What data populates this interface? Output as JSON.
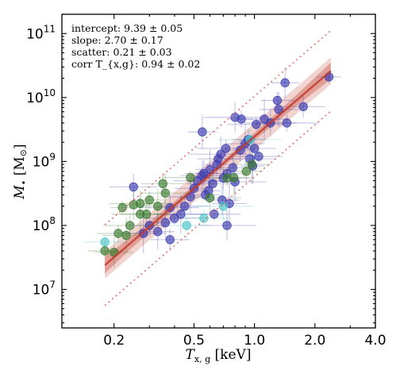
{
  "chart_data": {
    "type": "scatter",
    "x_scale": "log",
    "y_scale": "log",
    "xlabel": "T_{x,g} [keV]",
    "ylabel": "M• [M⊙]",
    "xlim": [
      0.11,
      4.0
    ],
    "ylim": [
      2500000,
      200000000000
    ],
    "x_ticks": [
      0.2,
      0.5,
      1.0,
      2.0,
      4.0
    ],
    "x_tick_labels": [
      "0.2",
      "0.5",
      "1.0",
      "2.0",
      "4.0"
    ],
    "y_ticks": [
      10000000,
      100000000,
      1000000000,
      10000000000,
      100000000000
    ],
    "y_tick_labels": [
      {
        "base": "10",
        "exp": "7"
      },
      {
        "base": "10",
        "exp": "8"
      },
      {
        "base": "10",
        "exp": "9"
      },
      {
        "base": "10",
        "exp": "10"
      },
      {
        "base": "10",
        "exp": "11"
      }
    ],
    "annotations": [
      {
        "label": "intercept:",
        "value": "9.39 ± 0.05"
      },
      {
        "label": "slope:",
        "value": "2.70 ± 0.17"
      },
      {
        "label": "scatter:",
        "value": "0.21 ± 0.03"
      },
      {
        "label": "corr T_{x,g}:",
        "value": "0.94 ± 0.02"
      }
    ],
    "fit": {
      "intercept": 9.39,
      "slope": 2.7,
      "pivot_keV": 1.0,
      "scatter_dex": 0.21,
      "x_range": [
        0.18,
        2.4
      ],
      "color": "#c0392b"
    },
    "series": [
      {
        "color": "#3b3bb0",
        "points": [
          [
            2.35,
            21000000000.0
          ],
          [
            1.42,
            17000000000.0
          ],
          [
            1.3,
            9000000000.0
          ],
          [
            1.32,
            6500000000.0
          ],
          [
            1.75,
            7200000000.0
          ],
          [
            1.12,
            4600000000.0
          ],
          [
            1.2,
            4000000000.0
          ],
          [
            1.02,
            3800000000.0
          ],
          [
            0.8,
            4900000000.0
          ],
          [
            0.86,
            4600000000.0
          ],
          [
            0.55,
            2900000000.0
          ],
          [
            0.93,
            2200000000.0
          ],
          [
            0.9,
            1900000000.0
          ],
          [
            1.0,
            1600000000.0
          ],
          [
            1.05,
            1200000000.0
          ],
          [
            0.95,
            1100000000.0
          ],
          [
            0.72,
            1600000000.0
          ],
          [
            0.68,
            1300000000.0
          ],
          [
            0.65,
            900000000.0
          ],
          [
            0.6,
            750000000.0
          ],
          [
            0.78,
            800000000.0
          ],
          [
            0.73,
            650000000.0
          ],
          [
            0.55,
            600000000.0
          ],
          [
            0.52,
            500000000.0
          ],
          [
            0.62,
            450000000.0
          ],
          [
            0.7,
            550000000.0
          ],
          [
            0.8,
            480000000.0
          ],
          [
            0.59,
            350000000.0
          ],
          [
            0.57,
            300000000.0
          ],
          [
            0.69,
            250000000.0
          ],
          [
            0.5,
            380000000.0
          ],
          [
            0.48,
            280000000.0
          ],
          [
            0.45,
            200000000.0
          ],
          [
            0.43,
            150000000.0
          ],
          [
            0.38,
            190000000.0
          ],
          [
            0.4,
            130000000.0
          ],
          [
            0.36,
            110000000.0
          ],
          [
            0.3,
            100000000.0
          ],
          [
            0.33,
            80000000.0
          ],
          [
            0.38,
            60000000.0
          ],
          [
            0.28,
            75000000.0
          ],
          [
            0.25,
            400000000.0
          ],
          [
            0.63,
            150000000.0
          ],
          [
            0.73,
            100000000.0
          ],
          [
            1.45,
            4000000000.0
          ],
          [
            0.98,
            850000000.0
          ],
          [
            0.85,
            1500000000.0
          ],
          [
            0.75,
            220000000.0
          ],
          [
            0.56,
            650000000.0
          ],
          [
            0.66,
            1100000000.0
          ]
        ]
      },
      {
        "color": "#3a7a2e",
        "points": [
          [
            0.18,
            40000000.0
          ],
          [
            0.2,
            38000000.0
          ],
          [
            0.21,
            75000000.0
          ],
          [
            0.23,
            70000000.0
          ],
          [
            0.24,
            100000000.0
          ],
          [
            0.27,
            150000000.0
          ],
          [
            0.27,
            220000000.0
          ],
          [
            0.22,
            190000000.0
          ],
          [
            0.25,
            210000000.0
          ],
          [
            0.3,
            250000000.0
          ],
          [
            0.33,
            200000000.0
          ],
          [
            0.35,
            450000000.0
          ],
          [
            0.36,
            320000000.0
          ],
          [
            0.29,
            150000000.0
          ],
          [
            0.48,
            560000000.0
          ],
          [
            0.6,
            270000000.0
          ],
          [
            0.73,
            550000000.0
          ],
          [
            0.79,
            560000000.0
          ],
          [
            0.91,
            700000000.0
          ],
          [
            0.97,
            900000000.0
          ]
        ]
      },
      {
        "color": "#4cc6c8",
        "points": [
          [
            0.18,
            55000000.0
          ],
          [
            0.46,
            100000000.0
          ],
          [
            0.56,
            130000000.0
          ],
          [
            0.7,
            200000000.0
          ],
          [
            0.95,
            2200000000.0
          ]
        ]
      }
    ],
    "grid": false,
    "legend": "none"
  }
}
